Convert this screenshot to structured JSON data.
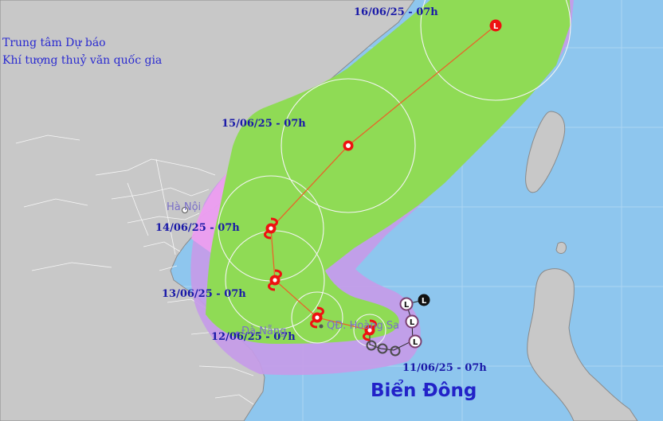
{
  "agency": {
    "line1": "Trung tâm Dự báo",
    "line2": "Khí tượng thuỷ văn quốc gia"
  },
  "places": {
    "hanoi": "Hà Nội",
    "danang": "Đà Nẵng",
    "hoang_sa": "QĐ. Hoàng Sa"
  },
  "sea_label": "Biển Đông",
  "track": [
    {
      "date_label": "16/06/25 - 07h",
      "symbol": "L",
      "role": "forecast"
    },
    {
      "date_label": "15/06/25 - 07h",
      "symbol": "low-pressure",
      "role": "forecast"
    },
    {
      "date_label": "14/06/25 - 07h",
      "symbol": "tropical-storm",
      "role": "forecast"
    },
    {
      "date_label": "13/06/25 - 07h",
      "symbol": "tropical-storm",
      "role": "forecast"
    },
    {
      "date_label": "12/06/25 - 07h",
      "symbol": "tropical-storm",
      "role": "forecast"
    },
    {
      "date_label": "11/06/25 - 07h",
      "symbol": "tropical-storm",
      "role": "current"
    }
  ],
  "past_symbols": [
    "L",
    "L",
    "L",
    "L"
  ],
  "colors": {
    "sea": "#8ec6ee",
    "land": "#c8c8c8",
    "danger_zone": "#c59be8",
    "risk_zone": "#ee9ef0",
    "strong_wind_zone": "#8fdb55",
    "track_line": "#e8642a",
    "storm_symbol": "#ee1111",
    "past_track": "#000000"
  }
}
